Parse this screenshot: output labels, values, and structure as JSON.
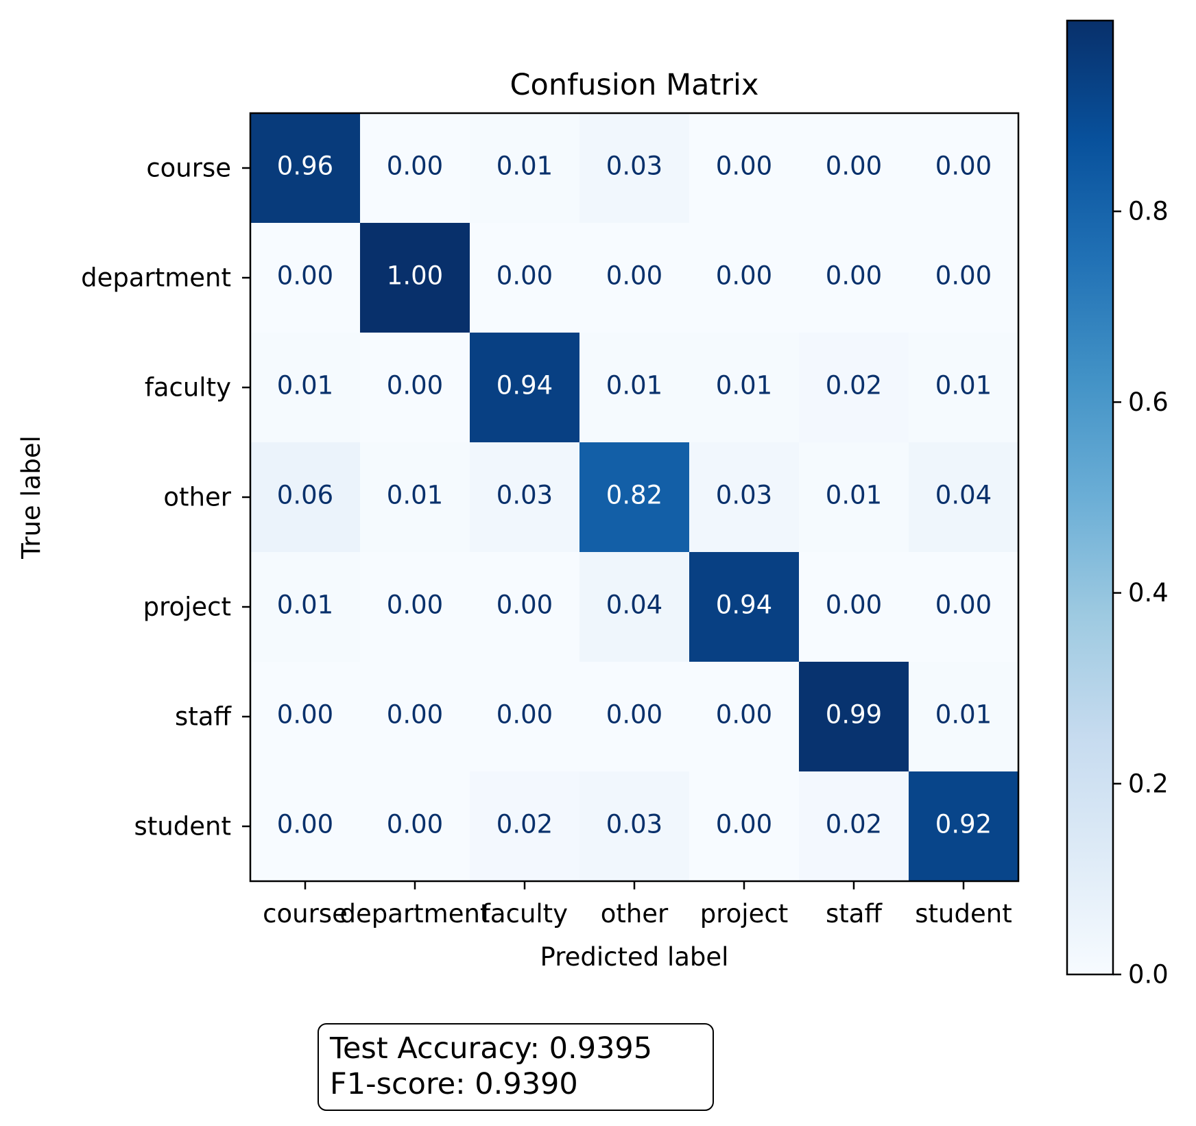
{
  "chart_data": {
    "type": "heatmap",
    "title": "Confusion Matrix",
    "xlabel": "Predicted label",
    "ylabel": "True label",
    "x_categories": [
      "course",
      "department",
      "faculty",
      "other",
      "project",
      "staff",
      "student"
    ],
    "y_categories": [
      "course",
      "department",
      "faculty",
      "other",
      "project",
      "staff",
      "student"
    ],
    "values": [
      [
        0.96,
        0.0,
        0.01,
        0.03,
        0.0,
        0.0,
        0.0
      ],
      [
        0.0,
        1.0,
        0.0,
        0.0,
        0.0,
        0.0,
        0.0
      ],
      [
        0.01,
        0.0,
        0.94,
        0.01,
        0.01,
        0.02,
        0.01
      ],
      [
        0.06,
        0.01,
        0.03,
        0.82,
        0.03,
        0.01,
        0.04
      ],
      [
        0.01,
        0.0,
        0.0,
        0.04,
        0.94,
        0.0,
        0.0
      ],
      [
        0.0,
        0.0,
        0.0,
        0.0,
        0.0,
        0.99,
        0.01
      ],
      [
        0.0,
        0.0,
        0.02,
        0.03,
        0.0,
        0.02,
        0.92
      ]
    ],
    "colormap": "Blues",
    "colorbar": {
      "min": 0.0,
      "max": 1.0,
      "ticks": [
        "0.0",
        "0.2",
        "0.4",
        "0.6",
        "0.8"
      ]
    },
    "cell_text_light": "#ffffff",
    "cell_text_dark": "#08306b",
    "grid": false
  },
  "metrics": {
    "accuracy_text": "Test Accuracy: 0.9395",
    "f1_text": "F1-score: 0.9390"
  }
}
